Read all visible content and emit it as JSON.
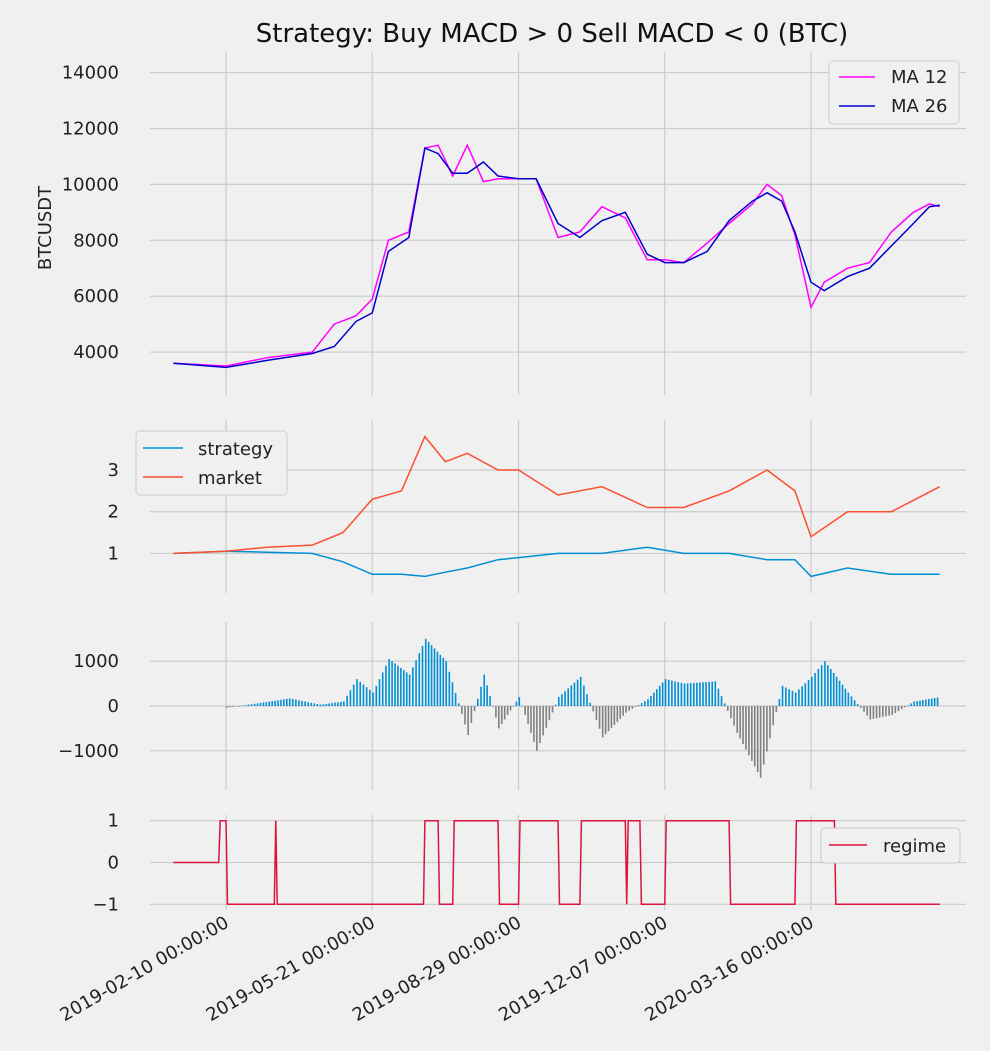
{
  "chart_data": [
    {
      "panel": "price",
      "type": "line",
      "title": "Strategy: Buy MACD > 0 Sell MACD < 0 (BTC)",
      "ylabel": "BTCUSDT",
      "yticks": [
        4000,
        6000,
        8000,
        10000,
        12000,
        14000
      ],
      "ylim": [
        3200,
        14000
      ],
      "x": [
        "2019-01-05",
        "2019-02-10",
        "2019-03-10",
        "2019-04-10",
        "2019-04-25",
        "2019-05-10",
        "2019-05-21",
        "2019-06-01",
        "2019-06-15",
        "2019-06-26",
        "2019-07-05",
        "2019-07-15",
        "2019-07-25",
        "2019-08-05",
        "2019-08-15",
        "2019-08-29",
        "2019-09-10",
        "2019-09-25",
        "2019-10-10",
        "2019-10-25",
        "2019-11-10",
        "2019-11-25",
        "2019-12-07",
        "2019-12-20",
        "2020-01-05",
        "2020-01-20",
        "2020-02-05",
        "2020-02-15",
        "2020-02-25",
        "2020-03-05",
        "2020-03-16",
        "2020-03-25",
        "2020-04-10",
        "2020-04-25",
        "2020-05-10",
        "2020-05-25",
        "2020-06-05",
        "2020-06-12"
      ],
      "series": [
        {
          "name": "MA 12",
          "color": "#ff00ff",
          "values": [
            3600,
            3500,
            3800,
            4000,
            5000,
            5300,
            5900,
            8000,
            8300,
            11300,
            11400,
            10300,
            11400,
            10100,
            10200,
            10200,
            10200,
            8100,
            8300,
            9200,
            8800,
            7300,
            7300,
            7200,
            7900,
            8600,
            9300,
            10000,
            9600,
            8200,
            5600,
            6500,
            7000,
            7200,
            8300,
            9000,
            9300,
            9200
          ]
        },
        {
          "name": "MA 26",
          "color": "#0000cd",
          "values": [
            3600,
            3450,
            3700,
            3950,
            4200,
            5100,
            5400,
            7600,
            8100,
            11300,
            11100,
            10400,
            10400,
            10800,
            10300,
            10200,
            10200,
            8600,
            8100,
            8700,
            9000,
            7500,
            7200,
            7200,
            7600,
            8700,
            9400,
            9700,
            9400,
            8300,
            6500,
            6200,
            6700,
            7000,
            7800,
            8600,
            9200,
            9250
          ]
        }
      ]
    },
    {
      "panel": "returns",
      "type": "line",
      "yticks": [
        1,
        2,
        3
      ],
      "ylim": [
        0.3,
        3.95
      ],
      "legend": "top-left",
      "x": [
        "2019-01-05",
        "2019-02-10",
        "2019-03-10",
        "2019-04-10",
        "2019-05-01",
        "2019-05-21",
        "2019-06-10",
        "2019-06-26",
        "2019-07-10",
        "2019-07-25",
        "2019-08-15",
        "2019-08-29",
        "2019-09-25",
        "2019-10-25",
        "2019-11-25",
        "2019-12-20",
        "2020-01-20",
        "2020-02-15",
        "2020-03-05",
        "2020-03-16",
        "2020-04-10",
        "2020-05-10",
        "2020-06-12"
      ],
      "series": [
        {
          "name": "strategy",
          "color": "#008fd5",
          "values": [
            1.0,
            1.05,
            1.03,
            1.0,
            0.8,
            0.5,
            0.5,
            0.45,
            0.55,
            0.65,
            0.85,
            0.9,
            1.0,
            1.0,
            1.15,
            1.0,
            1.0,
            0.85,
            0.85,
            0.45,
            0.65,
            0.5,
            0.5
          ]
        },
        {
          "name": "market",
          "color": "#fc4f30",
          "values": [
            1.0,
            1.05,
            1.15,
            1.2,
            1.5,
            2.3,
            2.5,
            3.8,
            3.2,
            3.4,
            3.0,
            3.0,
            2.4,
            2.6,
            2.1,
            2.1,
            2.5,
            3.0,
            2.5,
            1.4,
            2.0,
            2.0,
            2.6
          ]
        }
      ]
    },
    {
      "panel": "macd",
      "type": "bar",
      "yticks": [
        -1000,
        0,
        1000
      ],
      "ylim": [
        -1650,
        1650
      ],
      "colors": {
        "positive": "#008fd5",
        "negative": "#808080"
      },
      "x": [
        "2019-02-10",
        "2019-03-01",
        "2019-03-25",
        "2019-04-15",
        "2019-05-01",
        "2019-05-10",
        "2019-05-21",
        "2019-06-01",
        "2019-06-15",
        "2019-06-26",
        "2019-07-10",
        "2019-07-25",
        "2019-08-05",
        "2019-08-15",
        "2019-08-29",
        "2019-09-10",
        "2019-09-25",
        "2019-10-10",
        "2019-10-25",
        "2019-11-10",
        "2019-11-25",
        "2019-12-07",
        "2019-12-20",
        "2020-01-10",
        "2020-01-25",
        "2020-02-10",
        "2020-02-25",
        "2020-03-05",
        "2020-03-16",
        "2020-03-25",
        "2020-04-10",
        "2020-04-25",
        "2020-05-10",
        "2020-05-25",
        "2020-06-12"
      ],
      "values": [
        -40,
        50,
        170,
        30,
        100,
        600,
        300,
        1050,
        700,
        1500,
        1000,
        -650,
        700,
        -500,
        200,
        -1000,
        200,
        650,
        -700,
        -150,
        150,
        600,
        500,
        550,
        -600,
        -1600,
        450,
        300,
        650,
        1000,
        300,
        -300,
        -200,
        100,
        200
      ]
    },
    {
      "panel": "regime",
      "type": "line",
      "yticks": [
        -1,
        0,
        1
      ],
      "ylim": [
        -1,
        1
      ],
      "legend": "top-right",
      "series": [
        {
          "name": "regime",
          "color": "#dc143c",
          "values": [
            0,
            0,
            1,
            1,
            -1,
            -1,
            1,
            -1,
            -1,
            1,
            1,
            -1,
            -1,
            1,
            1,
            -1,
            -1,
            1,
            1,
            -1,
            -1,
            1,
            1,
            -1,
            1,
            1,
            -1,
            -1,
            1,
            1,
            -1,
            -1,
            1,
            1,
            -1,
            -1
          ],
          "x": [
            "2019-01-05",
            "2019-02-05",
            "2019-02-06",
            "2019-02-10",
            "2019-02-11",
            "2019-03-15",
            "2019-03-16",
            "2019-03-17",
            "2019-06-25",
            "2019-06-26",
            "2019-07-05",
            "2019-07-06",
            "2019-07-15",
            "2019-07-16",
            "2019-08-15",
            "2019-08-16",
            "2019-08-29",
            "2019-08-30",
            "2019-09-25",
            "2019-09-26",
            "2019-10-10",
            "2019-10-11",
            "2019-11-10",
            "2019-11-11",
            "2019-11-12",
            "2019-11-20",
            "2019-11-21",
            "2019-12-07",
            "2019-12-08",
            "2020-01-20",
            "2020-01-21",
            "2020-03-05",
            "2020-03-06",
            "2020-04-01",
            "2020-04-02",
            "2020-06-12"
          ]
        }
      ]
    }
  ],
  "x_axis": {
    "tick_labels": [
      "2019-02-10 00:00:00",
      "2019-05-21 00:00:00",
      "2019-08-29 00:00:00",
      "2019-12-07 00:00:00",
      "2020-03-16 00:00:00"
    ],
    "range": [
      "2018-12-20",
      "2020-06-30"
    ]
  },
  "title": "Strategy: Buy MACD > 0 Sell MACD < 0 (BTC)",
  "legend_labels": {
    "ma12": "MA 12",
    "ma26": "MA 26",
    "strategy": "strategy",
    "market": "market",
    "regime": "regime"
  }
}
